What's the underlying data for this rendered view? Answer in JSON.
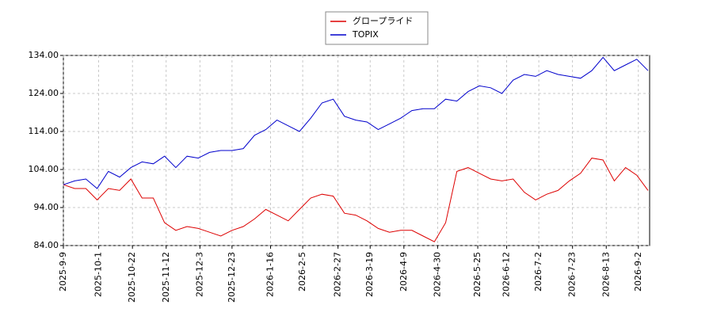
{
  "chart_data": {
    "type": "line",
    "x": [
      "2025-9-9",
      "2025-9-16",
      "2025-9-23",
      "2025-9-30",
      "2025-10-7",
      "2025-10-14",
      "2025-10-21",
      "2025-10-28",
      "2025-11-4",
      "2025-11-11",
      "2025-11-18",
      "2025-11-25",
      "2025-12-2",
      "2025-12-9",
      "2025-12-16",
      "2025-12-23",
      "2025-12-30",
      "2026-1-6",
      "2026-1-13",
      "2026-1-20",
      "2026-1-27",
      "2026-2-3",
      "2026-2-10",
      "2026-2-17",
      "2026-2-24",
      "2026-3-3",
      "2026-3-10",
      "2026-3-17",
      "2026-3-24",
      "2026-3-31",
      "2026-4-7",
      "2026-4-14",
      "2026-4-21",
      "2026-4-28",
      "2026-5-5",
      "2026-5-12",
      "2026-5-19",
      "2026-5-26",
      "2026-6-2",
      "2026-6-9",
      "2026-6-16",
      "2026-6-23",
      "2026-6-30",
      "2026-7-7",
      "2026-7-14",
      "2026-7-21",
      "2026-7-28",
      "2026-8-4",
      "2026-8-11",
      "2026-8-18",
      "2026-8-25",
      "2026-9-1",
      "2026-9-8"
    ],
    "series": [
      {
        "name": "グロープライド",
        "color": "#dd0000",
        "values": [
          100,
          99,
          99,
          96,
          99,
          98.5,
          101.5,
          96.5,
          96.5,
          90,
          88,
          89,
          88.5,
          87.5,
          86.5,
          88,
          89,
          91,
          93.5,
          92,
          90.5,
          93.5,
          96.5,
          97.5,
          97,
          92.5,
          92,
          90.5,
          88.5,
          87.5,
          88,
          88,
          86.5,
          85,
          90,
          103.5,
          104.5,
          103,
          101.5,
          101,
          101.5,
          98,
          96,
          97.5,
          98.5,
          101,
          103,
          107,
          106.5,
          101,
          104.5,
          102.5,
          98.5
        ]
      },
      {
        "name": "TOPIX",
        "color": "#0000cc",
        "values": [
          100,
          101,
          101.5,
          99,
          103.5,
          102,
          104.5,
          106,
          105.5,
          107.5,
          104.5,
          107.5,
          107,
          108.5,
          109,
          109,
          109.5,
          113,
          114.5,
          117,
          115.5,
          114,
          117.5,
          121.5,
          122.5,
          118,
          117,
          116.5,
          114.5,
          116,
          117.5,
          119.5,
          120,
          120,
          122.5,
          122,
          124.5,
          126,
          125.5,
          124,
          127.5,
          129,
          128.5,
          130,
          129,
          128.5,
          128,
          130,
          133.5,
          130,
          131.5,
          133,
          130
        ]
      }
    ],
    "xlim": [
      "2025-9-9",
      "2026-9-9"
    ],
    "xticks": [
      "2025-9-9",
      "2025-10-1",
      "2025-10-22",
      "2025-11-12",
      "2025-12-3",
      "2025-12-23",
      "2026-1-16",
      "2026-2-5",
      "2026-2-27",
      "2026-3-19",
      "2026-4-9",
      "2026-4-30",
      "2026-5-25",
      "2026-6-12",
      "2026-7-2",
      "2026-7-23",
      "2026-8-13",
      "2026-9-2"
    ],
    "ylim": [
      84,
      134
    ],
    "yticks": [
      {
        "value": 84,
        "label": "84.00"
      },
      {
        "value": 94,
        "label": "94.00"
      },
      {
        "value": 104,
        "label": "104.00"
      },
      {
        "value": 114,
        "label": "114.00"
      },
      {
        "value": 124,
        "label": "124.00"
      },
      {
        "value": 134,
        "label": "134.00"
      }
    ],
    "grid": true,
    "legend": "top"
  }
}
